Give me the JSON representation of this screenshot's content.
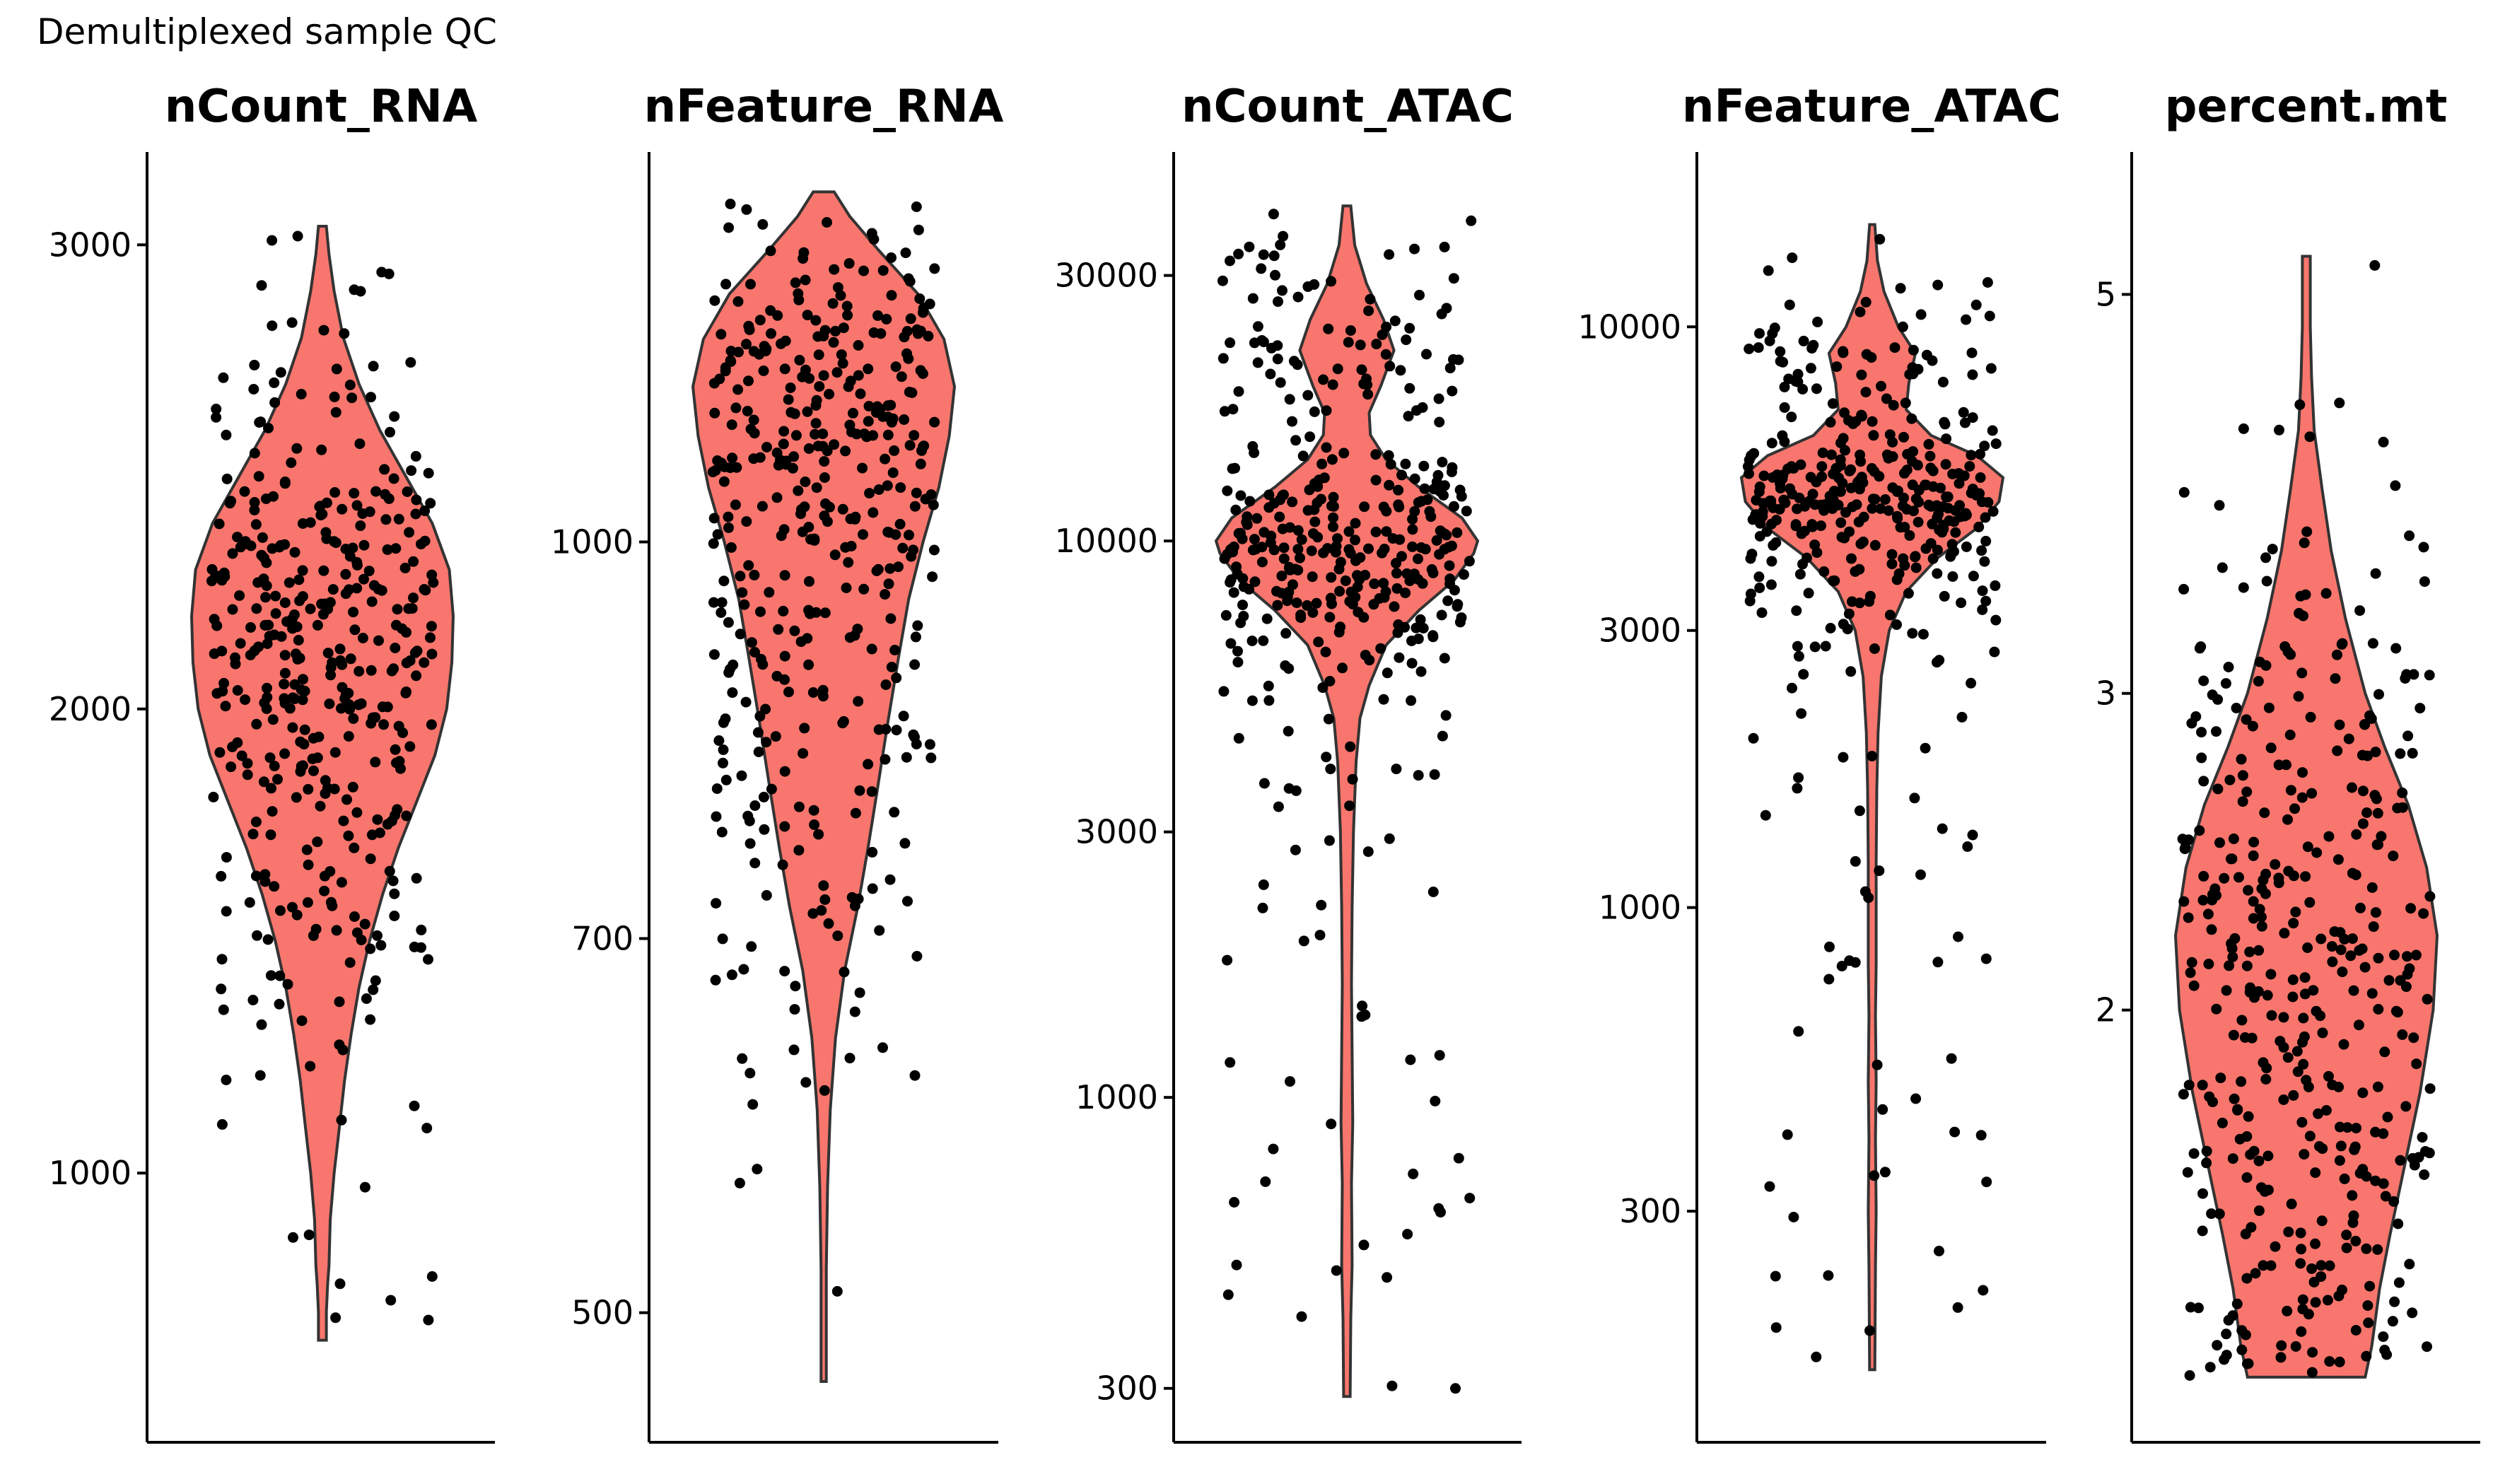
{
  "figure": {
    "title": "Demultiplexed sample QC"
  },
  "chart_data": [
    {
      "type": "violin",
      "title": "nCount_RNA",
      "scale": "linear",
      "ylim": [
        420,
        3200
      ],
      "y_ticks": [
        {
          "value": 1000,
          "label": "1000"
        },
        {
          "value": 2000,
          "label": "2000"
        },
        {
          "value": 3000,
          "label": "3000"
        }
      ],
      "y_min": 640,
      "y_max": 3040,
      "n_points": 400,
      "density": [
        [
          640,
          0.03
        ],
        [
          700,
          0.03
        ],
        [
          760,
          0.04
        ],
        [
          800,
          0.05
        ],
        [
          900,
          0.06
        ],
        [
          1000,
          0.09
        ],
        [
          1100,
          0.13
        ],
        [
          1200,
          0.17
        ],
        [
          1300,
          0.22
        ],
        [
          1400,
          0.28
        ],
        [
          1500,
          0.36
        ],
        [
          1600,
          0.46
        ],
        [
          1700,
          0.58
        ],
        [
          1800,
          0.72
        ],
        [
          1900,
          0.86
        ],
        [
          2000,
          0.95
        ],
        [
          2100,
          0.99
        ],
        [
          2200,
          1.0
        ],
        [
          2300,
          0.97
        ],
        [
          2400,
          0.84
        ],
        [
          2500,
          0.64
        ],
        [
          2600,
          0.44
        ],
        [
          2700,
          0.28
        ],
        [
          2800,
          0.16
        ],
        [
          2900,
          0.09
        ],
        [
          2980,
          0.05
        ],
        [
          3040,
          0.03
        ]
      ],
      "fill": "#f8766d",
      "jitter_width": 0.85,
      "seed": 11
    },
    {
      "type": "violin",
      "title": "nFeature_RNA",
      "scale": "log",
      "ylim": [
        445,
        1420
      ],
      "y_ticks": [
        {
          "value": 500,
          "label": "500"
        },
        {
          "value": 700,
          "label": "700"
        },
        {
          "value": 1000,
          "label": "1000"
        }
      ],
      "y_min": 470,
      "y_max": 1370,
      "n_points": 400,
      "density": [
        [
          470,
          0.02
        ],
        [
          520,
          0.02
        ],
        [
          560,
          0.03
        ],
        [
          600,
          0.05
        ],
        [
          640,
          0.09
        ],
        [
          680,
          0.16
        ],
        [
          720,
          0.26
        ],
        [
          760,
          0.34
        ],
        [
          800,
          0.41
        ],
        [
          850,
          0.49
        ],
        [
          900,
          0.57
        ],
        [
          950,
          0.65
        ],
        [
          1000,
          0.76
        ],
        [
          1050,
          0.88
        ],
        [
          1100,
          0.96
        ],
        [
          1150,
          1.0
        ],
        [
          1200,
          0.92
        ],
        [
          1250,
          0.72
        ],
        [
          1300,
          0.42
        ],
        [
          1340,
          0.2
        ],
        [
          1370,
          0.08
        ]
      ],
      "fill": "#f8766d",
      "jitter_width": 0.85,
      "seed": 23
    },
    {
      "type": "violin",
      "title": "nCount_ATAC",
      "scale": "log",
      "ylim": [
        240,
        50000
      ],
      "y_ticks": [
        {
          "value": 300,
          "label": "300"
        },
        {
          "value": 1000,
          "label": "1000"
        },
        {
          "value": 3000,
          "label": "3000"
        },
        {
          "value": 10000,
          "label": "10000"
        },
        {
          "value": 30000,
          "label": "30000"
        }
      ],
      "y_min": 290,
      "y_max": 40000,
      "n_points": 400,
      "density": [
        [
          290,
          0.025
        ],
        [
          400,
          0.03
        ],
        [
          500,
          0.04
        ],
        [
          700,
          0.035
        ],
        [
          900,
          0.045
        ],
        [
          1200,
          0.04
        ],
        [
          1600,
          0.035
        ],
        [
          2200,
          0.04
        ],
        [
          3000,
          0.05
        ],
        [
          4000,
          0.07
        ],
        [
          4800,
          0.1
        ],
        [
          5500,
          0.17
        ],
        [
          6500,
          0.3
        ],
        [
          7500,
          0.55
        ],
        [
          8500,
          0.82
        ],
        [
          9500,
          0.97
        ],
        [
          10000,
          1.0
        ],
        [
          11000,
          0.88
        ],
        [
          12500,
          0.55
        ],
        [
          14000,
          0.3
        ],
        [
          15500,
          0.18
        ],
        [
          17000,
          0.17
        ],
        [
          19000,
          0.26
        ],
        [
          22000,
          0.36
        ],
        [
          25000,
          0.28
        ],
        [
          29000,
          0.15
        ],
        [
          34000,
          0.06
        ],
        [
          40000,
          0.03
        ]
      ],
      "fill": "#f8766d",
      "jitter_width": 0.95,
      "seed": 37
    },
    {
      "type": "violin",
      "title": "nFeature_ATAC",
      "scale": "log",
      "ylim": [
        120,
        20000
      ],
      "y_ticks": [
        {
          "value": 300,
          "label": "300"
        },
        {
          "value": 1000,
          "label": "1000"
        },
        {
          "value": 3000,
          "label": "3000"
        },
        {
          "value": 10000,
          "label": "10000"
        }
      ],
      "y_min": 160,
      "y_max": 15000,
      "n_points": 400,
      "density": [
        [
          160,
          0.02
        ],
        [
          240,
          0.025
        ],
        [
          300,
          0.03
        ],
        [
          400,
          0.025
        ],
        [
          500,
          0.03
        ],
        [
          650,
          0.025
        ],
        [
          800,
          0.03
        ],
        [
          1200,
          0.03
        ],
        [
          1600,
          0.035
        ],
        [
          2000,
          0.045
        ],
        [
          2500,
          0.07
        ],
        [
          3000,
          0.13
        ],
        [
          3500,
          0.26
        ],
        [
          4000,
          0.5
        ],
        [
          4500,
          0.8
        ],
        [
          5000,
          0.97
        ],
        [
          5500,
          1.0
        ],
        [
          6000,
          0.8
        ],
        [
          6500,
          0.45
        ],
        [
          7200,
          0.26
        ],
        [
          8000,
          0.28
        ],
        [
          9000,
          0.33
        ],
        [
          10000,
          0.2
        ],
        [
          11500,
          0.09
        ],
        [
          13000,
          0.04
        ],
        [
          15000,
          0.02
        ]
      ],
      "fill": "#f8766d",
      "jitter_width": 0.95,
      "seed": 51
    },
    {
      "type": "violin",
      "title": "percent.mt",
      "scale": "log",
      "ylim": [
        1.15,
        6.0
      ],
      "y_ticks": [
        {
          "value": 2,
          "label": "2"
        },
        {
          "value": 3,
          "label": "3"
        },
        {
          "value": 5,
          "label": "5"
        }
      ],
      "y_min": 1.25,
      "y_max": 5.25,
      "n_points": 400,
      "density": [
        [
          1.25,
          0.45
        ],
        [
          1.3,
          0.5
        ],
        [
          1.4,
          0.56
        ],
        [
          1.5,
          0.64
        ],
        [
          1.65,
          0.76
        ],
        [
          1.8,
          0.87
        ],
        [
          2.0,
          0.97
        ],
        [
          2.2,
          1.0
        ],
        [
          2.4,
          0.92
        ],
        [
          2.6,
          0.78
        ],
        [
          2.8,
          0.6
        ],
        [
          3.0,
          0.45
        ],
        [
          3.3,
          0.3
        ],
        [
          3.6,
          0.19
        ],
        [
          3.9,
          0.12
        ],
        [
          4.2,
          0.06
        ],
        [
          4.5,
          0.04
        ],
        [
          4.8,
          0.03
        ],
        [
          5.0,
          0.03
        ],
        [
          5.25,
          0.03
        ]
      ],
      "fill": "#f8766d",
      "jitter_width": 0.95,
      "seed": 73
    }
  ]
}
